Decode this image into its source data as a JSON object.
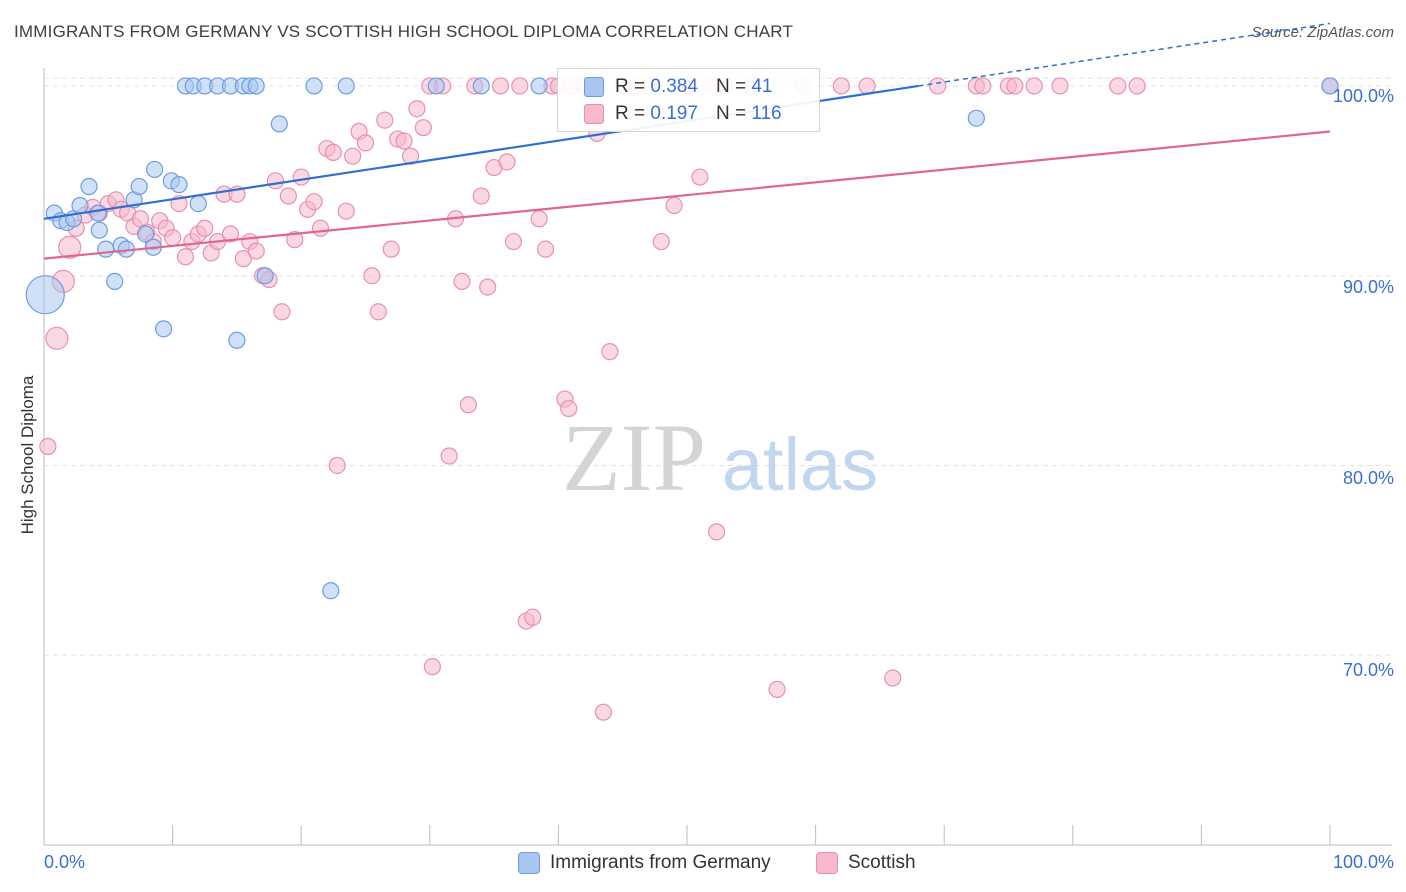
{
  "title": "IMMIGRANTS FROM GERMANY VS SCOTTISH HIGH SCHOOL DIPLOMA CORRELATION CHART",
  "source": "Source: ZipAtlas.com",
  "watermark": {
    "zip": "ZIP",
    "atlas": "atlas"
  },
  "legend": {
    "germany": {
      "r_label": "R =",
      "r_value": "0.384",
      "n_label": "N =",
      "n_value": "41"
    },
    "scottish": {
      "r_label": "R =",
      "r_value": "0.197",
      "n_label": "N =",
      "n_value": "116"
    }
  },
  "colors": {
    "germany_fill": "#a9c6f0",
    "germany_stroke": "#6d9de0",
    "germany_line": "#2f6fd0",
    "scottish_fill": "#f6b8cc",
    "scottish_stroke": "#e891ae",
    "scottish_line": "#e0668f",
    "tick_text": "#3b6fd4",
    "grid": "#e3e3e3"
  },
  "chart_data": {
    "type": "scatter",
    "title": "IMMIGRANTS FROM GERMANY VS SCOTTISH HIGH SCHOOL DIPLOMA CORRELATION CHART",
    "xlabel": "",
    "ylabel": "High School Diploma",
    "xlim": [
      0,
      100
    ],
    "ylim": [
      60,
      102
    ],
    "x_tick_labels": [
      "0.0%",
      "100.0%"
    ],
    "y_ticks": [
      70,
      80,
      90,
      100
    ],
    "y_tick_labels": [
      "70.0%",
      "80.0%",
      "90.0%",
      "100.0%"
    ],
    "grid": true,
    "legend_position": "top-center",
    "series": [
      {
        "name": "Immigrants from Germany",
        "color": "#a9c6f0",
        "trend": {
          "x": [
            0,
            68
          ],
          "y": [
            93.0,
            100.0
          ]
        },
        "points": [
          {
            "x": 0.1,
            "y": 89.0,
            "s": 3
          },
          {
            "x": 0.8,
            "y": 93.3
          },
          {
            "x": 1.3,
            "y": 92.9
          },
          {
            "x": 1.8,
            "y": 92.8
          },
          {
            "x": 2.3,
            "y": 93.0
          },
          {
            "x": 2.8,
            "y": 93.7
          },
          {
            "x": 3.5,
            "y": 94.7
          },
          {
            "x": 4.2,
            "y": 93.3
          },
          {
            "x": 4.3,
            "y": 92.4
          },
          {
            "x": 4.8,
            "y": 91.4
          },
          {
            "x": 5.5,
            "y": 89.7
          },
          {
            "x": 6.0,
            "y": 91.6
          },
          {
            "x": 6.4,
            "y": 91.4
          },
          {
            "x": 7.0,
            "y": 94.0
          },
          {
            "x": 7.4,
            "y": 94.7
          },
          {
            "x": 7.9,
            "y": 92.2
          },
          {
            "x": 8.5,
            "y": 91.5
          },
          {
            "x": 8.6,
            "y": 95.6
          },
          {
            "x": 9.3,
            "y": 87.2
          },
          {
            "x": 9.9,
            "y": 95.0
          },
          {
            "x": 10.5,
            "y": 94.8
          },
          {
            "x": 11.0,
            "y": 100.0
          },
          {
            "x": 11.6,
            "y": 100.0
          },
          {
            "x": 12.0,
            "y": 93.8
          },
          {
            "x": 12.5,
            "y": 100.0
          },
          {
            "x": 13.5,
            "y": 100.0
          },
          {
            "x": 14.5,
            "y": 100.0
          },
          {
            "x": 15.0,
            "y": 86.6
          },
          {
            "x": 15.5,
            "y": 100.0
          },
          {
            "x": 16.0,
            "y": 100.0
          },
          {
            "x": 16.5,
            "y": 100.0
          },
          {
            "x": 17.2,
            "y": 90.0
          },
          {
            "x": 18.3,
            "y": 98.0
          },
          {
            "x": 21.0,
            "y": 100.0
          },
          {
            "x": 22.3,
            "y": 73.4
          },
          {
            "x": 23.5,
            "y": 100.0
          },
          {
            "x": 30.5,
            "y": 100.0
          },
          {
            "x": 34.0,
            "y": 100.0
          },
          {
            "x": 38.5,
            "y": 100.0
          },
          {
            "x": 72.5,
            "y": 98.3
          },
          {
            "x": 100.0,
            "y": 100.0
          }
        ]
      },
      {
        "name": "Scottish",
        "color": "#f6b8cc",
        "trend": {
          "x": [
            0,
            100
          ],
          "y": [
            90.9,
            97.6
          ]
        },
        "points": [
          {
            "x": 0.3,
            "y": 81.0
          },
          {
            "x": 1.0,
            "y": 86.7,
            "s": 2
          },
          {
            "x": 1.5,
            "y": 89.7,
            "s": 2
          },
          {
            "x": 2.0,
            "y": 91.5,
            "s": 2
          },
          {
            "x": 2.5,
            "y": 92.5
          },
          {
            "x": 3.2,
            "y": 93.2
          },
          {
            "x": 3.8,
            "y": 93.6
          },
          {
            "x": 4.3,
            "y": 93.3
          },
          {
            "x": 5.0,
            "y": 93.8
          },
          {
            "x": 5.6,
            "y": 94.0
          },
          {
            "x": 6.0,
            "y": 93.5
          },
          {
            "x": 6.5,
            "y": 93.3
          },
          {
            "x": 7.0,
            "y": 92.6
          },
          {
            "x": 7.5,
            "y": 93.0
          },
          {
            "x": 8.0,
            "y": 92.3
          },
          {
            "x": 8.5,
            "y": 91.8
          },
          {
            "x": 9.0,
            "y": 92.9
          },
          {
            "x": 9.5,
            "y": 92.5
          },
          {
            "x": 10.0,
            "y": 92.0
          },
          {
            "x": 10.5,
            "y": 93.8
          },
          {
            "x": 11.0,
            "y": 91.0
          },
          {
            "x": 11.5,
            "y": 91.8
          },
          {
            "x": 12.0,
            "y": 92.2
          },
          {
            "x": 12.5,
            "y": 92.5
          },
          {
            "x": 13.0,
            "y": 91.2
          },
          {
            "x": 13.5,
            "y": 91.8
          },
          {
            "x": 14.0,
            "y": 94.3
          },
          {
            "x": 14.5,
            "y": 92.2
          },
          {
            "x": 15.0,
            "y": 94.3
          },
          {
            "x": 15.5,
            "y": 90.9
          },
          {
            "x": 16.0,
            "y": 91.8
          },
          {
            "x": 16.5,
            "y": 91.3
          },
          {
            "x": 17.0,
            "y": 90.0
          },
          {
            "x": 17.5,
            "y": 89.8
          },
          {
            "x": 18.0,
            "y": 95.0
          },
          {
            "x": 18.5,
            "y": 88.1
          },
          {
            "x": 19.0,
            "y": 94.2
          },
          {
            "x": 19.5,
            "y": 91.9
          },
          {
            "x": 20.0,
            "y": 95.2
          },
          {
            "x": 20.5,
            "y": 93.5
          },
          {
            "x": 21.0,
            "y": 93.9
          },
          {
            "x": 21.5,
            "y": 92.5
          },
          {
            "x": 22.0,
            "y": 96.7
          },
          {
            "x": 22.5,
            "y": 96.5
          },
          {
            "x": 22.8,
            "y": 80.0
          },
          {
            "x": 23.5,
            "y": 93.4
          },
          {
            "x": 24.0,
            "y": 96.3
          },
          {
            "x": 24.5,
            "y": 97.6
          },
          {
            "x": 25.0,
            "y": 97.0
          },
          {
            "x": 25.5,
            "y": 90.0
          },
          {
            "x": 26.0,
            "y": 88.1
          },
          {
            "x": 26.5,
            "y": 98.2
          },
          {
            "x": 27.0,
            "y": 91.4
          },
          {
            "x": 27.5,
            "y": 97.2
          },
          {
            "x": 28.0,
            "y": 97.1
          },
          {
            "x": 28.5,
            "y": 96.3
          },
          {
            "x": 29.0,
            "y": 98.8
          },
          {
            "x": 29.5,
            "y": 97.8
          },
          {
            "x": 30.0,
            "y": 100.0
          },
          {
            "x": 30.2,
            "y": 69.4
          },
          {
            "x": 31.0,
            "y": 100.0
          },
          {
            "x": 31.5,
            "y": 80.5
          },
          {
            "x": 32.0,
            "y": 93.0
          },
          {
            "x": 32.5,
            "y": 89.7
          },
          {
            "x": 33.0,
            "y": 83.2
          },
          {
            "x": 33.5,
            "y": 100.0
          },
          {
            "x": 34.0,
            "y": 94.2
          },
          {
            "x": 34.5,
            "y": 89.4
          },
          {
            "x": 35.0,
            "y": 95.7
          },
          {
            "x": 35.5,
            "y": 100.0
          },
          {
            "x": 36.0,
            "y": 96.0
          },
          {
            "x": 36.5,
            "y": 91.8
          },
          {
            "x": 37.0,
            "y": 100.0
          },
          {
            "x": 37.5,
            "y": 71.8
          },
          {
            "x": 38.0,
            "y": 72.0
          },
          {
            "x": 38.5,
            "y": 93.0
          },
          {
            "x": 39.0,
            "y": 91.4
          },
          {
            "x": 39.5,
            "y": 100.0
          },
          {
            "x": 40.0,
            "y": 100.0
          },
          {
            "x": 40.5,
            "y": 83.5
          },
          {
            "x": 40.8,
            "y": 83.0
          },
          {
            "x": 41.0,
            "y": 100.0
          },
          {
            "x": 42.0,
            "y": 100.0
          },
          {
            "x": 43.0,
            "y": 97.5
          },
          {
            "x": 43.5,
            "y": 67.0
          },
          {
            "x": 44.0,
            "y": 86.0
          },
          {
            "x": 45.0,
            "y": 100.0
          },
          {
            "x": 46.0,
            "y": 100.0
          },
          {
            "x": 47.0,
            "y": 100.0
          },
          {
            "x": 48.0,
            "y": 91.8
          },
          {
            "x": 49.0,
            "y": 93.7
          },
          {
            "x": 50.0,
            "y": 100.0
          },
          {
            "x": 51.0,
            "y": 95.2
          },
          {
            "x": 52.0,
            "y": 100.0
          },
          {
            "x": 52.3,
            "y": 76.5
          },
          {
            "x": 53.0,
            "y": 100.0
          },
          {
            "x": 55.0,
            "y": 100.0
          },
          {
            "x": 57.0,
            "y": 68.2
          },
          {
            "x": 59.0,
            "y": 100.0
          },
          {
            "x": 62.0,
            "y": 100.0
          },
          {
            "x": 64.0,
            "y": 100.0
          },
          {
            "x": 66.0,
            "y": 68.8
          },
          {
            "x": 69.5,
            "y": 100.0
          },
          {
            "x": 72.5,
            "y": 100.0
          },
          {
            "x": 73.0,
            "y": 100.0
          },
          {
            "x": 75.0,
            "y": 100.0
          },
          {
            "x": 75.5,
            "y": 100.0
          },
          {
            "x": 77.0,
            "y": 100.0
          },
          {
            "x": 79.0,
            "y": 100.0
          },
          {
            "x": 83.5,
            "y": 100.0
          },
          {
            "x": 85.0,
            "y": 100.0
          },
          {
            "x": 100.0,
            "y": 100.0
          }
        ]
      }
    ]
  }
}
